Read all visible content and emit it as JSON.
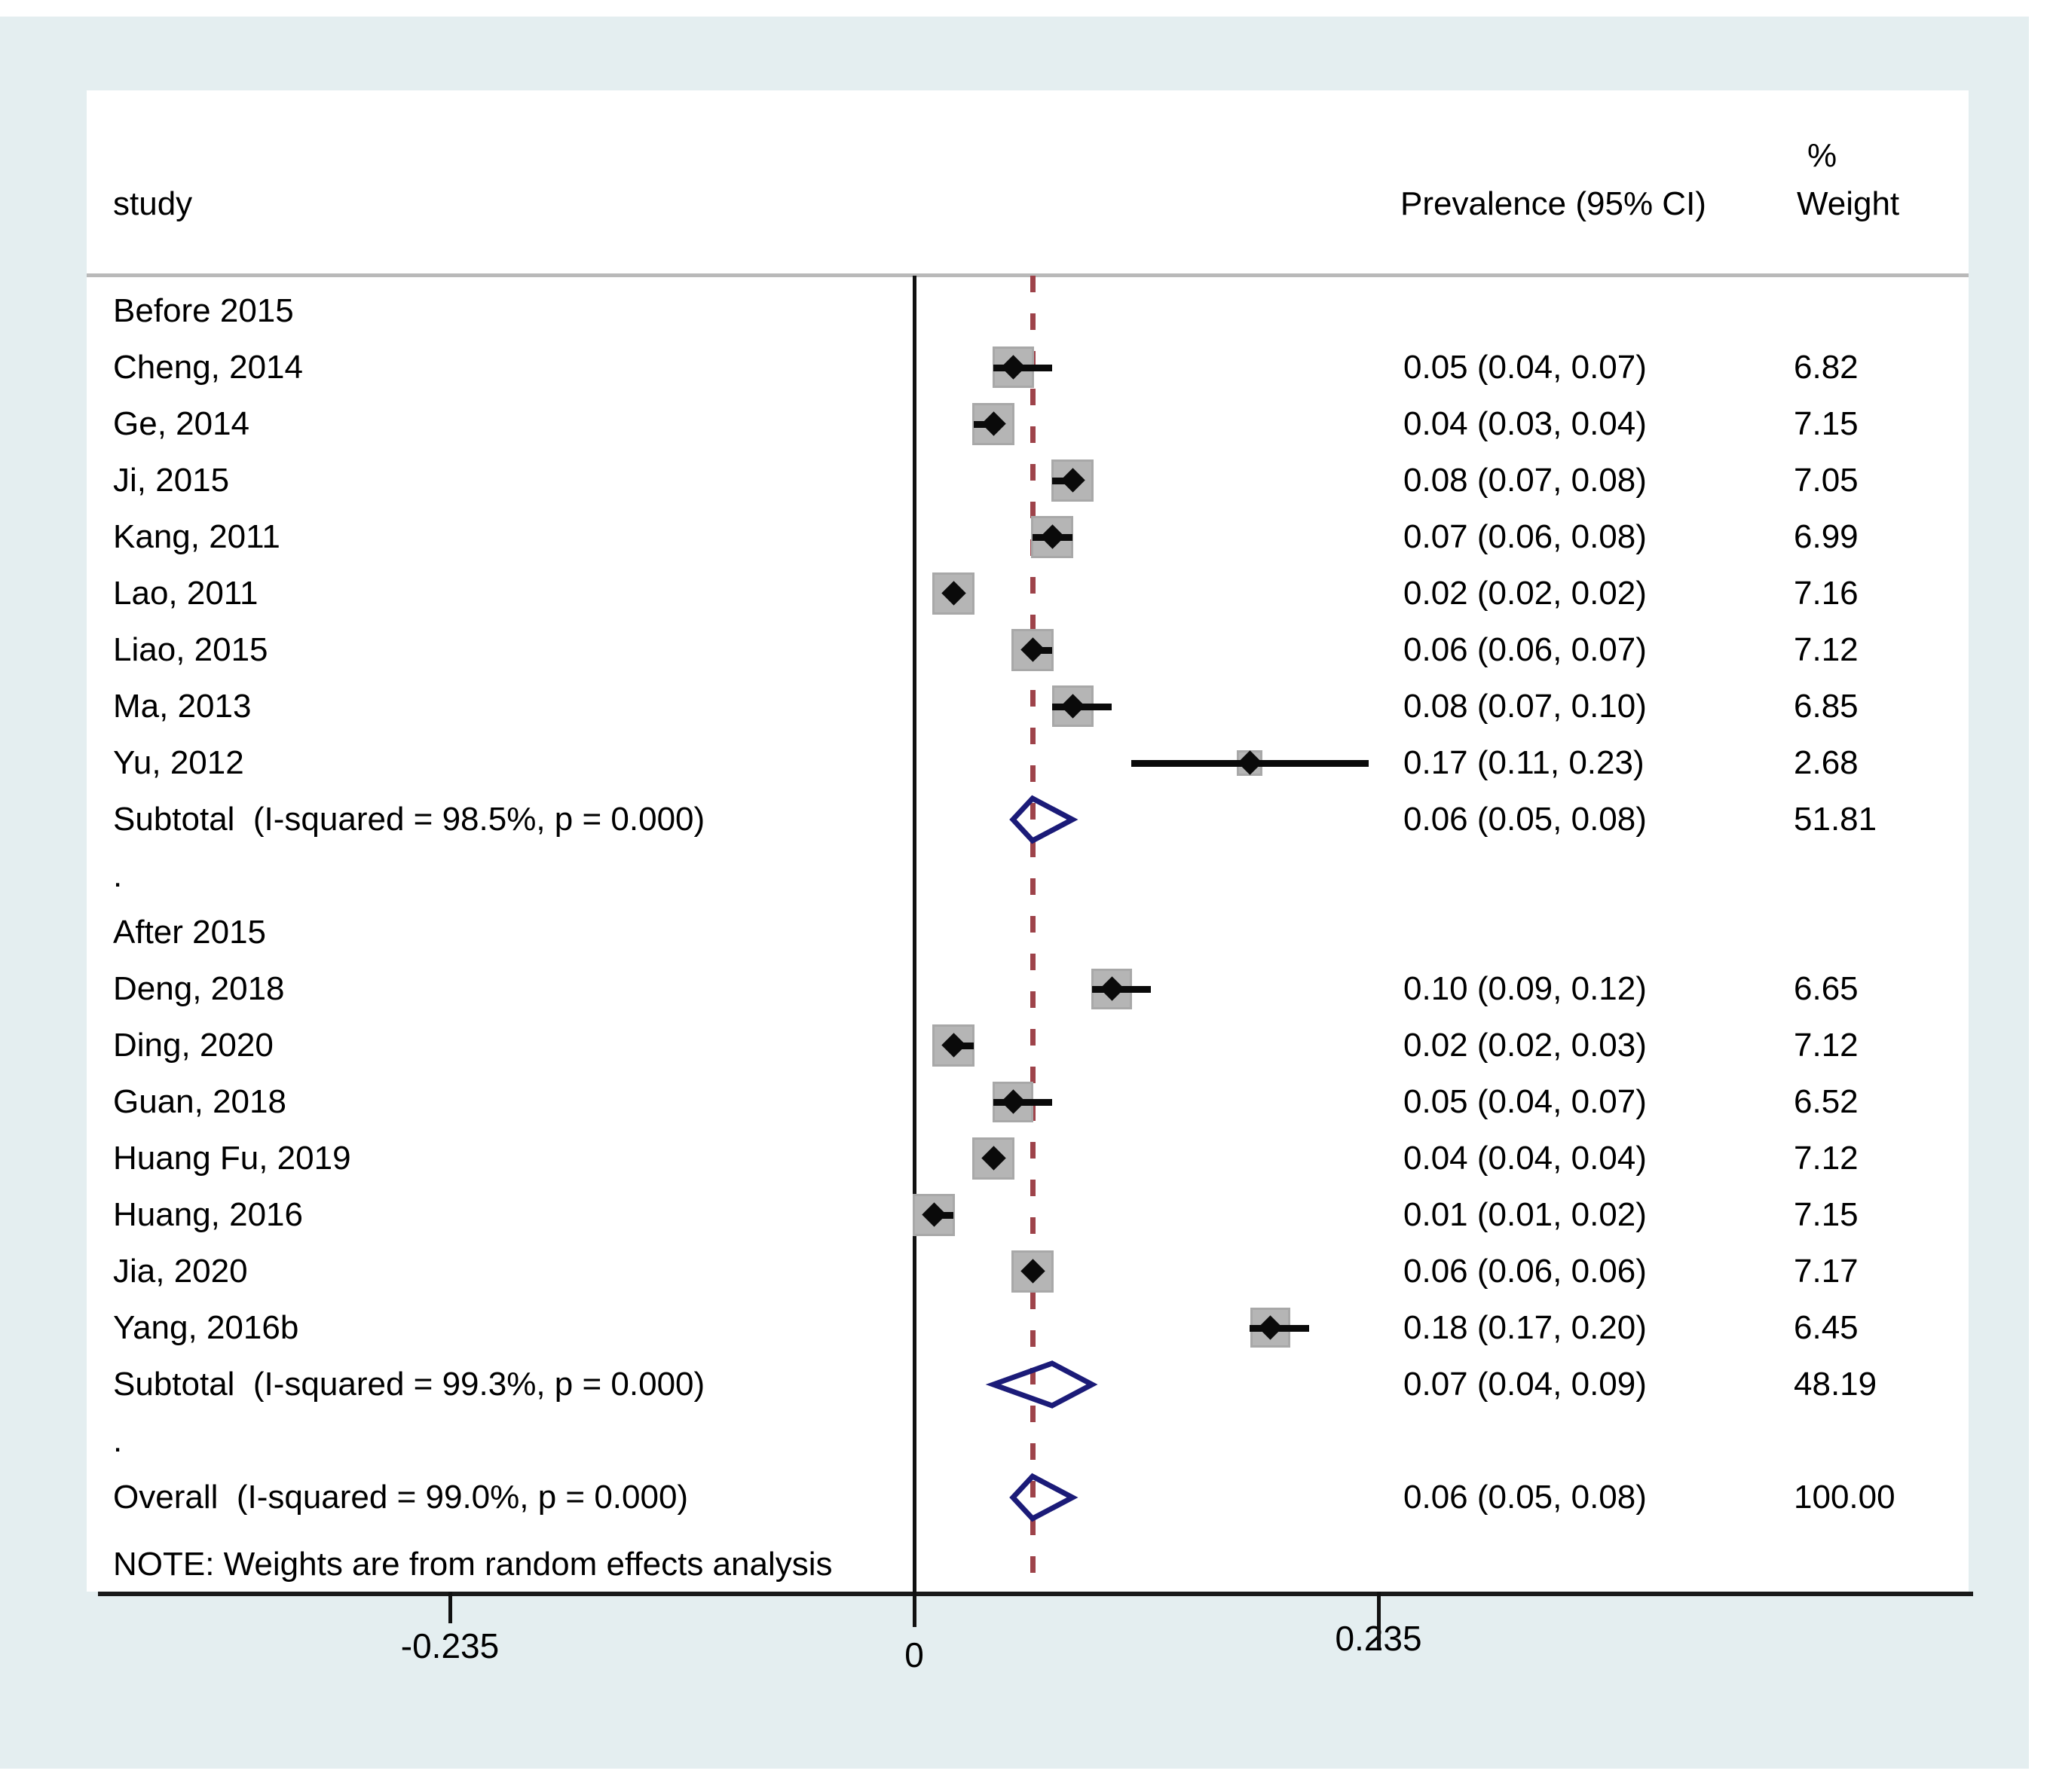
{
  "chart_data": {
    "type": "forest",
    "header": {
      "study": "study",
      "effect": "Prevalence (95% CI)",
      "pct": "%",
      "weight": "Weight"
    },
    "axis": {
      "ticks": [
        {
          "value": -0.235,
          "label": "-0.235"
        },
        {
          "value": 0,
          "label": "0"
        },
        {
          "value": 0.235,
          "label": "0.235"
        }
      ],
      "zero_line": 0,
      "dashed_line_at_overall": 0.06
    },
    "separator_label": ".",
    "note": "NOTE: Weights are from random effects analysis",
    "groups": [
      {
        "label": "Before 2015",
        "studies": [
          {
            "name": "Cheng, 2014",
            "est": 0.05,
            "lo": 0.04,
            "hi": 0.07,
            "effect_label": "0.05 (0.04, 0.07)",
            "weight": 6.82,
            "weight_label": "6.82"
          },
          {
            "name": "Ge, 2014",
            "est": 0.04,
            "lo": 0.03,
            "hi": 0.04,
            "effect_label": "0.04 (0.03, 0.04)",
            "weight": 7.15,
            "weight_label": "7.15"
          },
          {
            "name": "Ji, 2015",
            "est": 0.08,
            "lo": 0.07,
            "hi": 0.08,
            "effect_label": "0.08 (0.07, 0.08)",
            "weight": 7.05,
            "weight_label": "7.05"
          },
          {
            "name": "Kang, 2011",
            "est": 0.07,
            "lo": 0.06,
            "hi": 0.08,
            "effect_label": "0.07 (0.06, 0.08)",
            "weight": 6.99,
            "weight_label": "6.99"
          },
          {
            "name": "Lao, 2011",
            "est": 0.02,
            "lo": 0.02,
            "hi": 0.02,
            "effect_label": "0.02 (0.02, 0.02)",
            "weight": 7.16,
            "weight_label": "7.16"
          },
          {
            "name": "Liao, 2015",
            "est": 0.06,
            "lo": 0.06,
            "hi": 0.07,
            "effect_label": "0.06 (0.06, 0.07)",
            "weight": 7.12,
            "weight_label": "7.12"
          },
          {
            "name": "Ma, 2013",
            "est": 0.08,
            "lo": 0.07,
            "hi": 0.1,
            "effect_label": "0.08 (0.07, 0.10)",
            "weight": 6.85,
            "weight_label": "6.85"
          },
          {
            "name": "Yu, 2012",
            "est": 0.17,
            "lo": 0.11,
            "hi": 0.23,
            "effect_label": "0.17 (0.11, 0.23)",
            "weight": 2.68,
            "weight_label": "2.68"
          }
        ],
        "subtotal": {
          "name": "Subtotal  (I-squared = 98.5%, p = 0.000)",
          "est": 0.06,
          "lo": 0.05,
          "hi": 0.08,
          "effect_label": "0.06 (0.05, 0.08)",
          "weight_label": "51.81"
        }
      },
      {
        "label": "After 2015",
        "studies": [
          {
            "name": "Deng, 2018",
            "est": 0.1,
            "lo": 0.09,
            "hi": 0.12,
            "effect_label": "0.10 (0.09, 0.12)",
            "weight": 6.65,
            "weight_label": "6.65"
          },
          {
            "name": "Ding, 2020",
            "est": 0.02,
            "lo": 0.02,
            "hi": 0.03,
            "effect_label": "0.02 (0.02, 0.03)",
            "weight": 7.12,
            "weight_label": "7.12"
          },
          {
            "name": "Guan, 2018",
            "est": 0.05,
            "lo": 0.04,
            "hi": 0.07,
            "effect_label": "0.05 (0.04, 0.07)",
            "weight": 6.52,
            "weight_label": "6.52"
          },
          {
            "name": "Huang Fu, 2019",
            "est": 0.04,
            "lo": 0.04,
            "hi": 0.04,
            "effect_label": "0.04 (0.04, 0.04)",
            "weight": 7.12,
            "weight_label": "7.12"
          },
          {
            "name": "Huang, 2016",
            "est": 0.01,
            "lo": 0.01,
            "hi": 0.02,
            "effect_label": "0.01 (0.01, 0.02)",
            "weight": 7.15,
            "weight_label": "7.15"
          },
          {
            "name": "Jia, 2020",
            "est": 0.06,
            "lo": 0.06,
            "hi": 0.06,
            "effect_label": "0.06 (0.06, 0.06)",
            "weight": 7.17,
            "weight_label": "7.17"
          },
          {
            "name": "Yang, 2016b",
            "est": 0.18,
            "lo": 0.17,
            "hi": 0.2,
            "effect_label": "0.18 (0.17, 0.20)",
            "weight": 6.45,
            "weight_label": "6.45"
          }
        ],
        "subtotal": {
          "name": "Subtotal  (I-squared = 99.3%, p = 0.000)",
          "est": 0.07,
          "lo": 0.04,
          "hi": 0.09,
          "effect_label": "0.07 (0.04, 0.09)",
          "weight_label": "48.19"
        }
      }
    ],
    "overall": {
      "name": "Overall  (I-squared = 99.0%, p = 0.000)",
      "est": 0.06,
      "lo": 0.05,
      "hi": 0.08,
      "effect_label": "0.06 (0.05, 0.08)",
      "weight_label": "100.00"
    },
    "colors": {
      "background": "#e4eef0",
      "overall_dashed_line": "#9e434a",
      "pooled_diamond": "#1b1b78",
      "weight_box": "#b5b5b5",
      "marker": "#0a0a0a"
    }
  }
}
